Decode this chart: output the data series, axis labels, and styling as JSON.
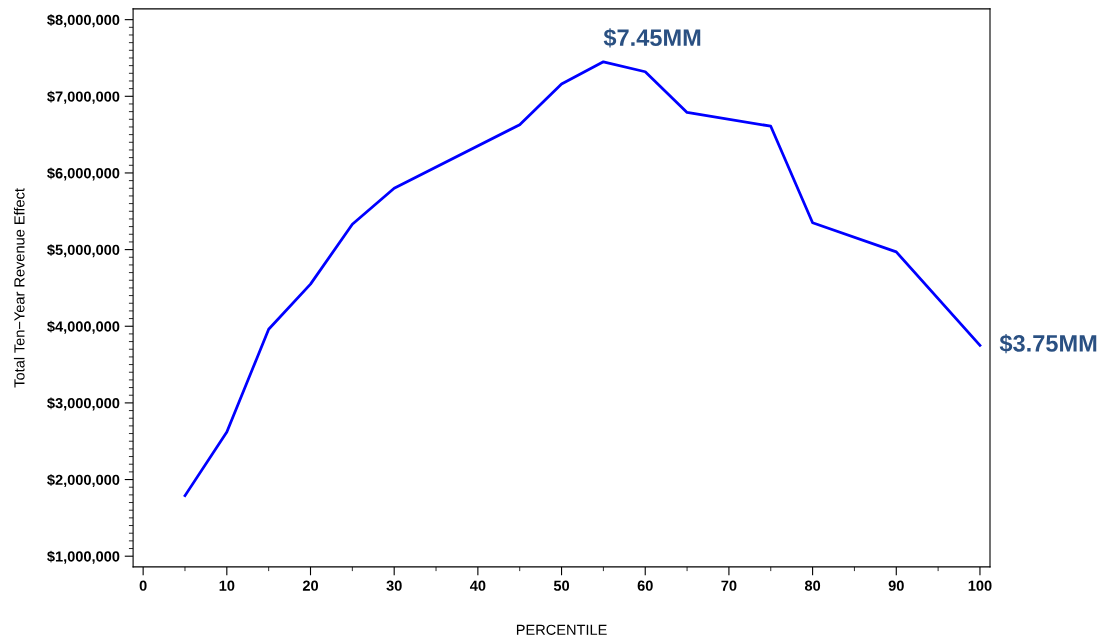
{
  "chart_data": {
    "type": "line",
    "xlabel": "PERCENTILE",
    "ylabel": "Total Ten−Year Revenue Effect",
    "x": [
      5,
      10,
      15,
      20,
      25,
      30,
      45,
      50,
      55,
      60,
      65,
      75,
      80,
      90,
      100
    ],
    "series": [
      {
        "color": "#0000ff",
        "values": [
          1790000,
          2620000,
          3960000,
          4550000,
          5330000,
          5800000,
          6630000,
          7160000,
          7450000,
          7320000,
          6790000,
          6610000,
          5350000,
          4970000,
          3750000
        ]
      }
    ],
    "xlim": [
      -1.2,
      101.2
    ],
    "ylim": [
      860000,
      8140000
    ],
    "xticks": [
      0,
      10,
      20,
      30,
      40,
      50,
      60,
      70,
      80,
      90,
      100
    ],
    "yticks": [
      {
        "value": 1000000,
        "label": "$1,000,000"
      },
      {
        "value": 2000000,
        "label": "$2,000,000"
      },
      {
        "value": 3000000,
        "label": "$3,000,000"
      },
      {
        "value": 4000000,
        "label": "$4,000,000"
      },
      {
        "value": 5000000,
        "label": "$5,000,000"
      },
      {
        "value": 6000000,
        "label": "$6,000,000"
      },
      {
        "value": 7000000,
        "label": "$7,000,000"
      },
      {
        "value": 8000000,
        "label": "$8,000,000"
      }
    ],
    "annotations": [
      {
        "text": "$7.45MM",
        "x": 55,
        "y": 7450000
      },
      {
        "text": "$3.75MM",
        "x": 100,
        "y": 3750000
      }
    ],
    "marker": "none",
    "line_style": "solid"
  }
}
